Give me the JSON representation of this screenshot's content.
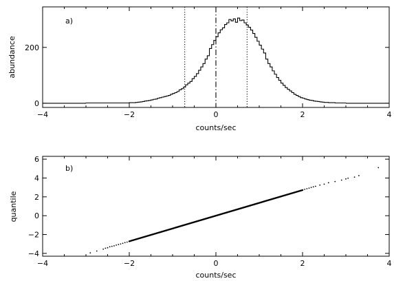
{
  "chart_data": [
    {
      "type": "histogram",
      "panel_label": "a)",
      "xlabel": "counts/sec",
      "ylabel": "abundance",
      "xlim": [
        -4,
        4
      ],
      "ylim": [
        -15,
        345
      ],
      "x_ticks": [
        -4,
        -2,
        0,
        2,
        4
      ],
      "x_tick_labels": [
        "−4",
        "−2",
        "0",
        "2",
        "4"
      ],
      "y_ticks": [
        0,
        200
      ],
      "y_tick_labels": [
        "0",
        "200"
      ],
      "grid": false,
      "bin_width": 0.05,
      "bins_start": -3.0,
      "values": [
        1,
        1,
        1,
        1,
        1,
        1,
        1,
        1,
        1,
        1,
        1,
        1,
        1,
        1,
        1,
        1,
        1,
        1,
        1,
        1,
        2,
        2,
        2,
        3,
        4,
        5,
        6,
        8,
        9,
        10,
        12,
        14,
        15,
        18,
        20,
        22,
        24,
        26,
        28,
        32,
        35,
        38,
        42,
        48,
        52,
        58,
        66,
        72,
        78,
        88,
        96,
        106,
        118,
        130,
        142,
        158,
        170,
        196,
        210,
        225,
        238,
        252,
        263,
        270,
        282,
        288,
        300,
        295,
        302,
        290,
        305,
        296,
        298,
        288,
        280,
        272,
        262,
        250,
        236,
        222,
        208,
        194,
        180,
        158,
        142,
        130,
        116,
        104,
        92,
        82,
        72,
        64,
        56,
        50,
        44,
        38,
        32,
        28,
        24,
        20,
        18,
        15,
        13,
        11,
        10,
        8,
        7,
        6,
        5,
        4,
        3,
        3,
        2,
        2,
        2,
        1,
        1,
        1,
        1,
        1
      ],
      "vertical_lines": [
        {
          "x": -0.72,
          "style": "dotted"
        },
        {
          "x": 0,
          "style": "dash-dot"
        },
        {
          "x": 0.72,
          "style": "dotted"
        }
      ]
    },
    {
      "type": "scatter",
      "panel_label": "b)",
      "xlabel": "counts/sec",
      "ylabel": "quantile",
      "xlim": [
        -4,
        4
      ],
      "ylim": [
        -4.3,
        6.3
      ],
      "x_ticks": [
        -4,
        -2,
        0,
        2,
        4
      ],
      "x_tick_labels": [
        "−4",
        "−2",
        "0",
        "2",
        "4"
      ],
      "y_ticks": [
        -4,
        -2,
        0,
        2,
        4,
        6
      ],
      "y_tick_labels": [
        "−4",
        "−2",
        "0",
        "2",
        "4",
        "6"
      ],
      "grid": false,
      "dense_line": {
        "x_start": -2.0,
        "x_end": 2.0,
        "slope": 1.36,
        "intercept": 0
      },
      "points": [
        [
          -2.9,
          -3.95
        ],
        [
          -2.75,
          -3.75
        ],
        [
          -2.6,
          -3.55
        ],
        [
          -2.55,
          -3.45
        ],
        [
          -2.5,
          -3.4
        ],
        [
          -2.45,
          -3.3
        ],
        [
          -2.4,
          -3.25
        ],
        [
          -2.35,
          -3.2
        ],
        [
          -2.3,
          -3.12
        ],
        [
          -2.25,
          -3.06
        ],
        [
          -2.2,
          -3.0
        ],
        [
          -2.15,
          -2.93
        ],
        [
          -2.1,
          -2.86
        ],
        [
          -2.05,
          -2.8
        ],
        [
          2.05,
          2.8
        ],
        [
          2.1,
          2.86
        ],
        [
          2.15,
          2.93
        ],
        [
          2.2,
          3.0
        ],
        [
          2.25,
          3.06
        ],
        [
          2.3,
          3.12
        ],
        [
          2.4,
          3.25
        ],
        [
          2.5,
          3.35
        ],
        [
          2.6,
          3.5
        ],
        [
          2.75,
          3.62
        ],
        [
          2.9,
          3.78
        ],
        [
          3.0,
          3.9
        ],
        [
          3.05,
          3.98
        ],
        [
          3.2,
          4.1
        ],
        [
          3.3,
          4.25
        ],
        [
          3.75,
          5.1
        ]
      ]
    }
  ]
}
